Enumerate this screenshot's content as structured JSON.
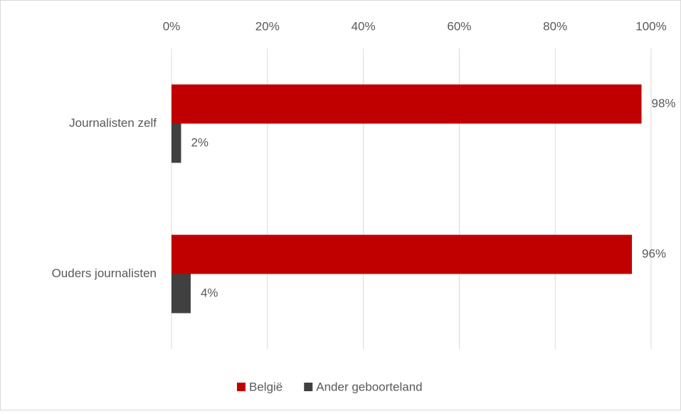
{
  "chart_data": {
    "type": "bar",
    "orientation": "horizontal",
    "categories": [
      "Journalisten zelf",
      "Ouders journalisten"
    ],
    "series": [
      {
        "name": "België",
        "color": "#c00000",
        "values": [
          98,
          96
        ],
        "value_labels": [
          "98%",
          "96%"
        ]
      },
      {
        "name": "Ander geboorteland",
        "color": "#404040",
        "values": [
          2,
          4
        ],
        "value_labels": [
          "2%",
          "4%"
        ]
      }
    ],
    "xlim": [
      0,
      100
    ],
    "xticks": [
      {
        "value": 0,
        "label": "0%"
      },
      {
        "value": 20,
        "label": "20%"
      },
      {
        "value": 40,
        "label": "40%"
      },
      {
        "value": 60,
        "label": "60%"
      },
      {
        "value": 80,
        "label": "80%"
      },
      {
        "value": 100,
        "label": "100%"
      }
    ],
    "grid": true,
    "legend": "bottom"
  }
}
